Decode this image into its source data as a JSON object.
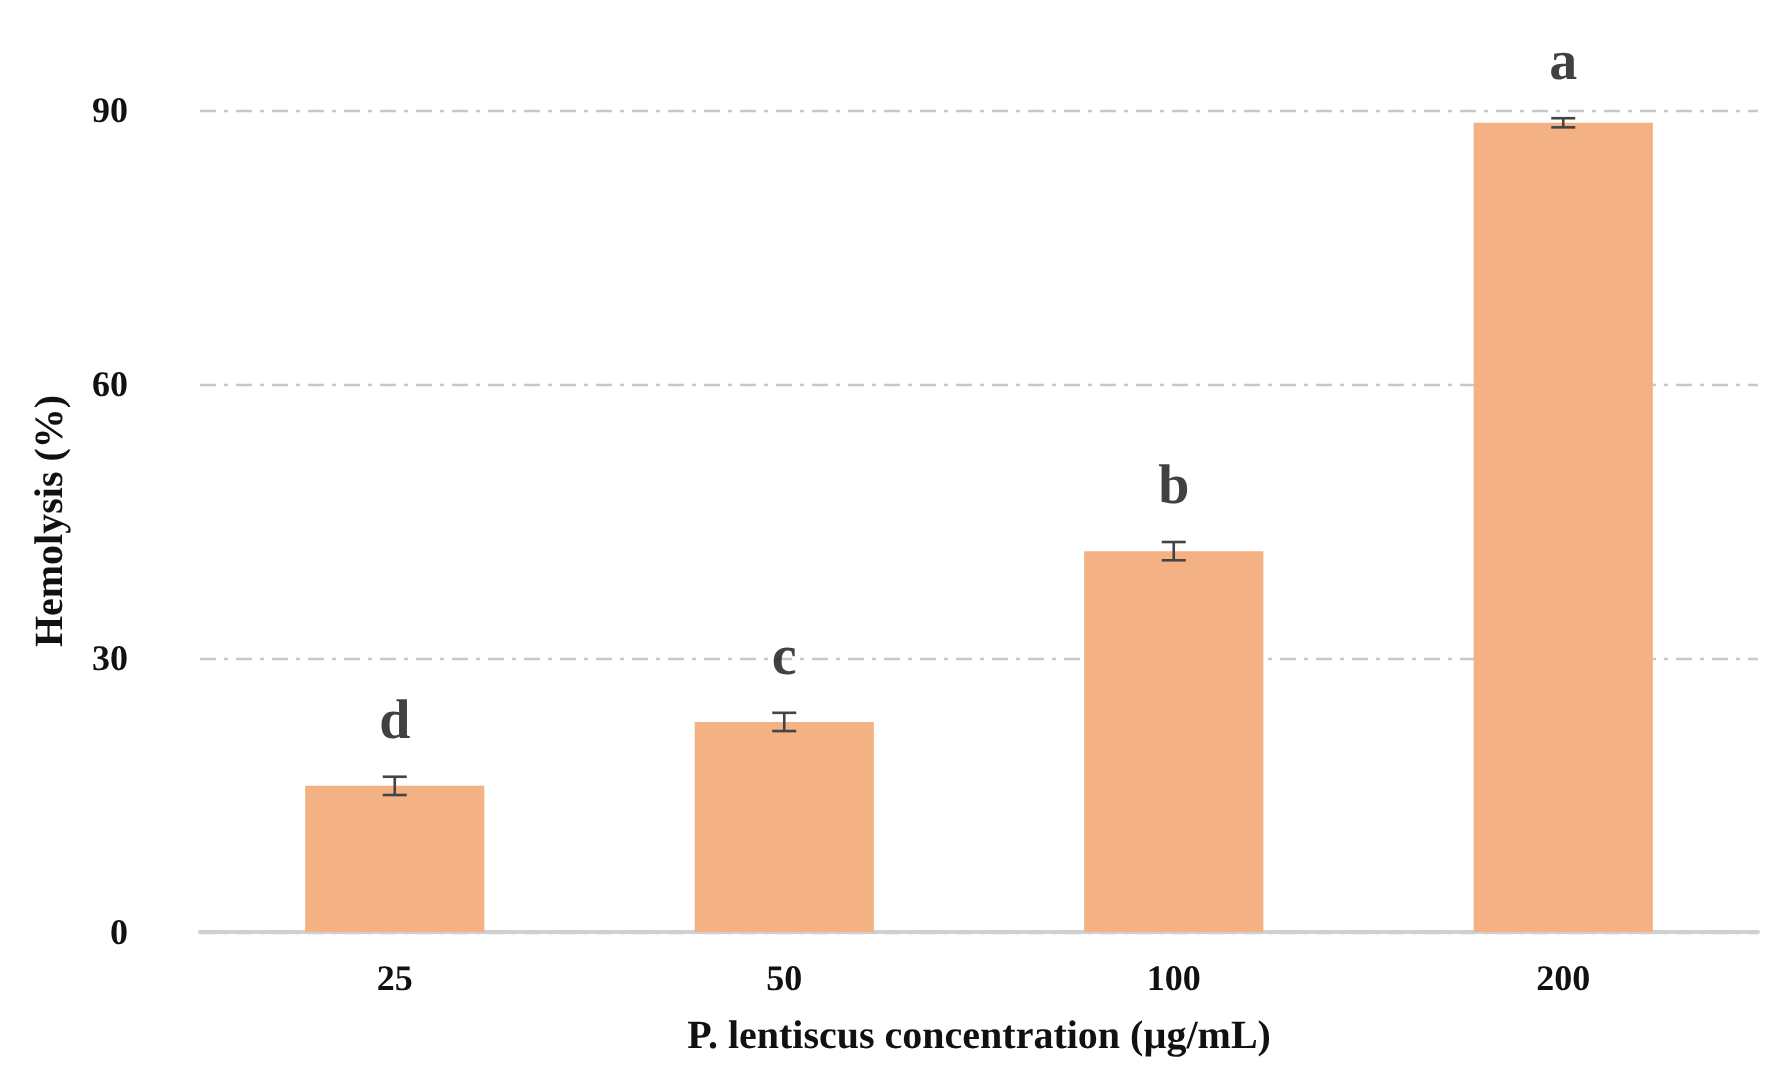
{
  "chart_data": {
    "type": "bar",
    "xlabel": "P. lentiscus concentration (µg/mL)",
    "ylabel": "Hemolysis (%)",
    "categories": [
      "25",
      "50",
      "100",
      "200"
    ],
    "values": [
      16.0,
      23.0,
      41.7,
      88.6
    ],
    "errors": [
      1,
      1,
      1,
      0.5
    ],
    "color": "#f4b183",
    "ylim": [
      0,
      90
    ],
    "yticks": [
      0,
      30,
      60,
      90
    ],
    "grid": "y",
    "annotations": [
      {
        "text": "d",
        "x": "25",
        "y": 16.0
      },
      {
        "text": "c",
        "x": "50",
        "y": 23.0
      },
      {
        "text": "b",
        "x": "100",
        "y": 41.7
      },
      {
        "text": "a",
        "x": "200",
        "y": 88.6
      }
    ]
  }
}
